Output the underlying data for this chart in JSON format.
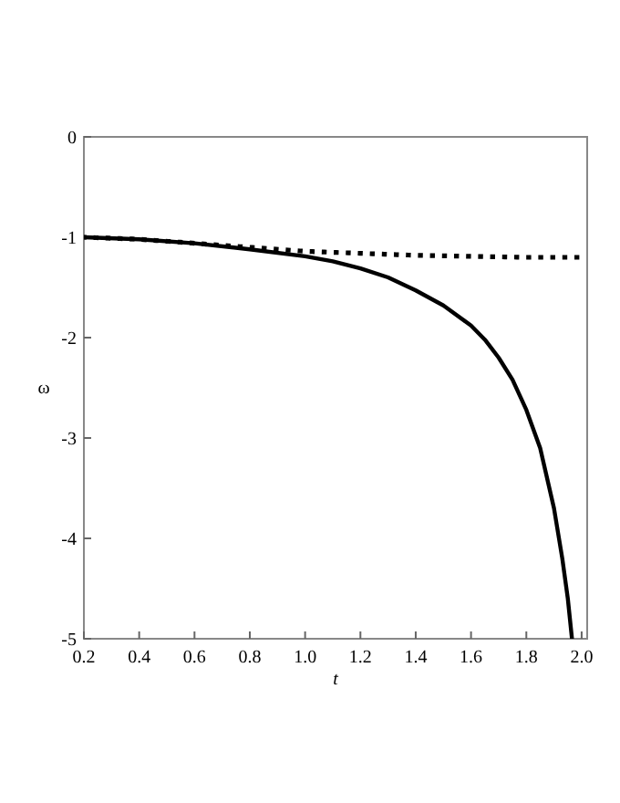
{
  "chart_data": {
    "type": "line",
    "xlabel": "t",
    "ylabel": "ω",
    "xlim": [
      0.2,
      2.02
    ],
    "ylim": [
      -5,
      0
    ],
    "xticks": [
      0.2,
      0.4,
      0.6,
      0.8,
      {
        "value": 1,
        "label": "1.0"
      },
      1.2,
      1.4,
      1.6,
      1.8,
      {
        "value": 2,
        "label": "2.0"
      }
    ],
    "yticks": [
      -5,
      -4,
      -3,
      -2,
      -1,
      0
    ],
    "series": [
      {
        "color": "#000000",
        "line_style": "solid",
        "x": [
          0.2,
          0.4,
          0.6,
          0.8,
          1.0,
          1.1,
          1.2,
          1.3,
          1.4,
          1.5,
          1.6,
          1.65,
          1.7,
          1.75,
          1.8,
          1.85,
          1.9,
          1.93,
          1.95,
          1.965
        ],
        "values": [
          -1,
          -1.02,
          -1.06,
          -1.12,
          -1.19,
          -1.24,
          -1.31,
          -1.4,
          -1.53,
          -1.68,
          -1.88,
          -2.02,
          -2.2,
          -2.42,
          -2.72,
          -3.1,
          -3.7,
          -4.2,
          -4.6,
          -5
        ]
      },
      {
        "color": "#000000",
        "line_style": "dotted",
        "x": [
          0.2,
          0.4,
          0.6,
          0.8,
          1.0,
          1.2,
          1.4,
          1.6,
          1.8,
          2.02
        ],
        "values": [
          -1,
          -1.02,
          -1.06,
          -1.1,
          -1.14,
          -1.16,
          -1.18,
          -1.19,
          -1.2,
          -1.2
        ]
      }
    ]
  }
}
